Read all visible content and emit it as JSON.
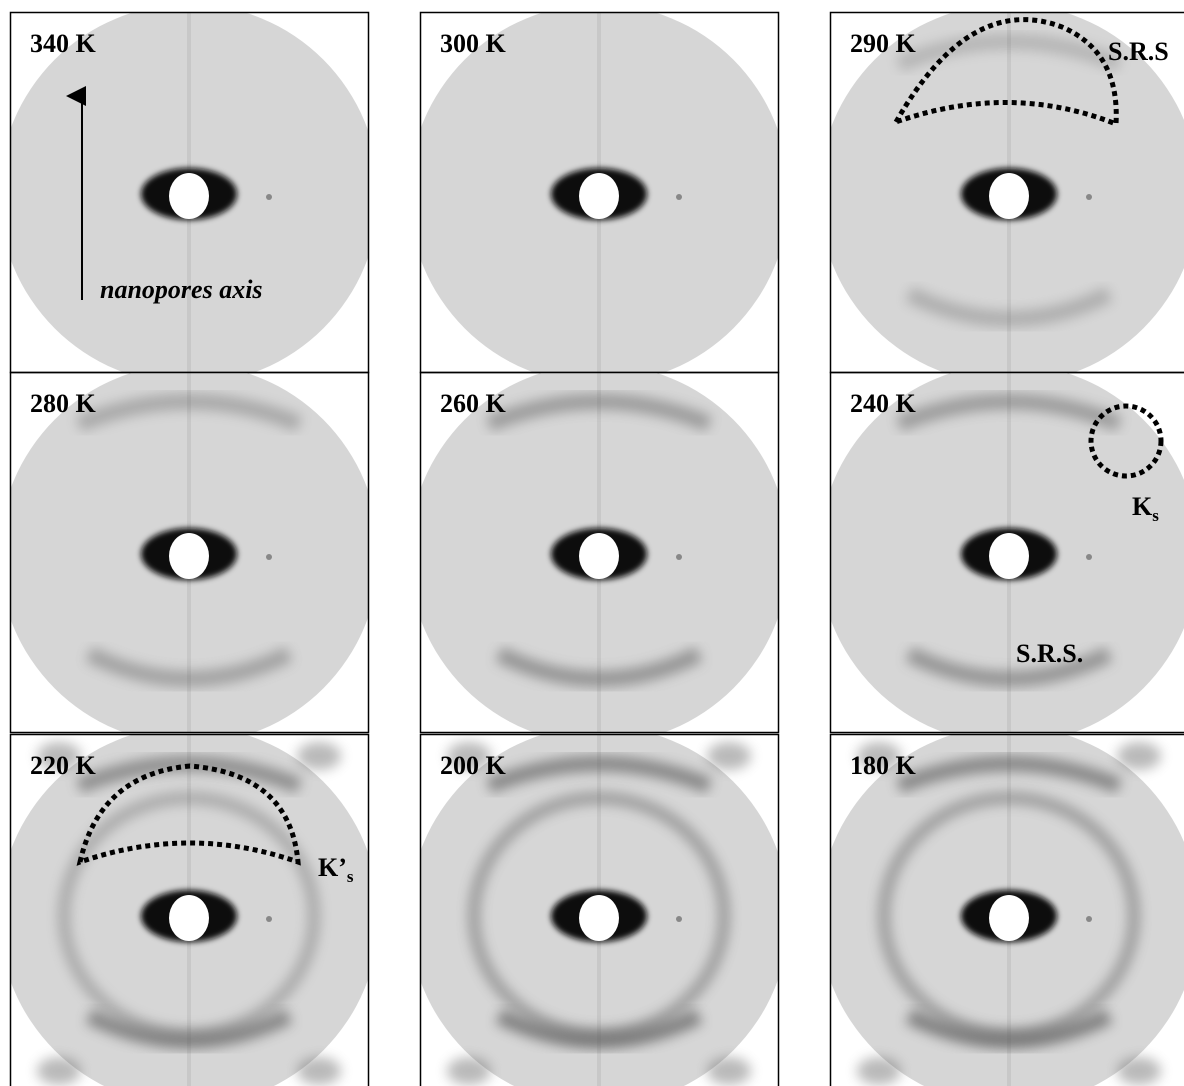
{
  "panels": [
    {
      "label": "340 K",
      "annotations": [
        {
          "text": "nanopores axis"
        }
      ]
    },
    {
      "label": "300 K",
      "annotations": []
    },
    {
      "label": "290 K",
      "annotations": [
        {
          "text": "S.R.S"
        }
      ]
    },
    {
      "label": "280 K",
      "annotations": []
    },
    {
      "label": "260 K",
      "annotations": []
    },
    {
      "label": "240 K",
      "annotations": [
        {
          "text": "K",
          "sub": "s"
        },
        {
          "text": "S.R.S."
        }
      ]
    },
    {
      "label": "220 K",
      "annotations": [
        {
          "text": "K’",
          "sub": "s"
        }
      ]
    },
    {
      "label": "200 K",
      "annotations": []
    },
    {
      "label": "180 K",
      "annotations": []
    }
  ]
}
